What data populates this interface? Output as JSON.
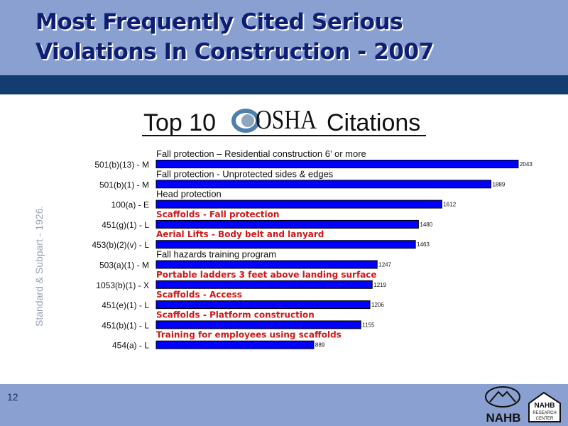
{
  "slide": {
    "title_line1": "Most Frequently Cited Serious",
    "title_line2": "Violations In Construction - 2007",
    "number": "12",
    "vertical_label": "Standard & Subpart - 1926.",
    "nahb_text": "NAHB",
    "nahb_rc_line1": "NAHB",
    "nahb_rc_line2": "RESEARCH",
    "nahb_rc_line3": "CENTER"
  },
  "chart_data": {
    "type": "bar",
    "orientation": "horizontal",
    "title_left": "Top 10",
    "title_logo_text": "OSHA",
    "title_right": "Citations",
    "xlim": [
      0,
      2100
    ],
    "bar_color": "#0000ff",
    "categories": [
      "501(b)(13) - M",
      "501(b)(1) - M",
      "100(a) - E",
      "451(g)(1) - L",
      "453(b)(2)(v) - L",
      "503(a)(1) - M",
      "1053(b)(1) - X",
      "451(e)(1) - L",
      "451(b)(1) - L",
      "454(a) - L"
    ],
    "values": [
      2043,
      1889,
      1612,
      1480,
      1463,
      1247,
      1219,
      1206,
      1155,
      889
    ],
    "annotations": [
      {
        "text": "Fall protection – Residential construction 6’ or more",
        "style": "plain"
      },
      {
        "text": "Fall protection - Unprotected sides & edges",
        "style": "plain"
      },
      {
        "text": "Head protection",
        "style": "plain"
      },
      {
        "text": "Scaffolds - Fall protection",
        "style": "red"
      },
      {
        "text": "Aerial Lifts - Body belt and lanyard",
        "style": "red"
      },
      {
        "text": "Fall hazards training program",
        "style": "plain"
      },
      {
        "text": "Portable ladders 3 feet above landing surface",
        "style": "red"
      },
      {
        "text": "Scaffolds - Access",
        "style": "red"
      },
      {
        "text": "Scaffolds - Platform construction",
        "style": "red"
      },
      {
        "text": "Training for employees using scaffolds",
        "style": "red"
      }
    ],
    "annotation_red_color": "#d01818"
  }
}
